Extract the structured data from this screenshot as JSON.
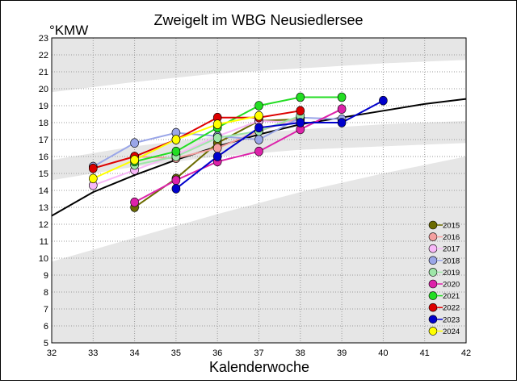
{
  "chart_data": {
    "type": "line",
    "title": "Zweigelt im WBG Neusiedlersee",
    "ylabel": "°KMW",
    "xlabel": "Kalenderwoche",
    "xlim": [
      32,
      42
    ],
    "ylim": [
      5,
      23
    ],
    "x_ticks": [
      32,
      33,
      34,
      35,
      36,
      37,
      38,
      39,
      40,
      41,
      42
    ],
    "y_ticks": [
      5,
      6,
      7,
      8,
      9,
      10,
      11,
      12,
      13,
      14,
      15,
      16,
      17,
      18,
      19,
      20,
      21,
      22,
      23
    ],
    "grid": true,
    "legend_position": "bottom-right",
    "bands": [
      {
        "color": "#e6e6e6",
        "upper": [
          [
            32,
            23
          ],
          [
            42,
            23
          ]
        ],
        "lower": [
          [
            32,
            19.8
          ],
          [
            34,
            20.4
          ],
          [
            36,
            20.9
          ],
          [
            38,
            21.2
          ],
          [
            40,
            21.5
          ],
          [
            42,
            21.7
          ]
        ]
      },
      {
        "color": "#e6e6e6",
        "upper": [
          [
            32,
            15.8
          ],
          [
            34,
            16.6
          ],
          [
            36,
            17.2
          ],
          [
            38,
            17.6
          ],
          [
            40,
            17.9
          ],
          [
            42,
            18.1
          ]
        ],
        "lower": [
          [
            32,
            14.6
          ],
          [
            34,
            15.4
          ],
          [
            36,
            16.0
          ],
          [
            38,
            16.4
          ],
          [
            40,
            16.6
          ],
          [
            42,
            16.8
          ]
        ]
      },
      {
        "color": "#e6e6e6",
        "upper": [
          [
            32,
            9.8
          ],
          [
            34,
            11.2
          ],
          [
            36,
            12.6
          ],
          [
            38,
            13.9
          ],
          [
            40,
            15.0
          ],
          [
            42,
            16.0
          ]
        ],
        "lower": [
          [
            32,
            5
          ],
          [
            42,
            5
          ]
        ]
      }
    ],
    "trend": {
      "color": "#000000",
      "points": [
        [
          32,
          12.5
        ],
        [
          33,
          13.9
        ],
        [
          34,
          14.9
        ],
        [
          35,
          15.8
        ],
        [
          36,
          16.6
        ],
        [
          37,
          17.3
        ],
        [
          38,
          17.9
        ],
        [
          39,
          18.3
        ],
        [
          40,
          18.7
        ],
        [
          41,
          19.1
        ],
        [
          42,
          19.4
        ]
      ]
    },
    "series": [
      {
        "name": "2015",
        "color": "#6b6b00",
        "points": [
          [
            34,
            13.0
          ],
          [
            35,
            14.7
          ],
          [
            36,
            16.8
          ],
          [
            37,
            18.1
          ],
          [
            38,
            18.2
          ]
        ]
      },
      {
        "name": "2016",
        "color": "#f4a0a0",
        "points": [
          [
            34,
            16.0
          ],
          [
            35,
            15.9
          ],
          [
            36,
            16.5
          ],
          [
            37,
            17.5
          ],
          [
            38,
            18.3
          ]
        ]
      },
      {
        "name": "2017",
        "color": "#f8b8f8",
        "points": [
          [
            33,
            14.3
          ],
          [
            34,
            15.2
          ],
          [
            35,
            16.1
          ],
          [
            36,
            17.2
          ],
          [
            37,
            18.1
          ],
          [
            38,
            18.0
          ]
        ]
      },
      {
        "name": "2018",
        "color": "#9aa6e8",
        "points": [
          [
            33,
            15.4
          ],
          [
            34,
            16.8
          ],
          [
            35,
            17.4
          ],
          [
            36,
            17.2
          ],
          [
            37,
            17.0
          ],
          [
            38,
            18.3
          ],
          [
            39,
            18.2
          ]
        ]
      },
      {
        "name": "2019",
        "color": "#9ee6a8",
        "points": [
          [
            34,
            15.5
          ],
          [
            35,
            16.0
          ],
          [
            36,
            17.1
          ],
          [
            37,
            17.5
          ],
          [
            38,
            18.4
          ]
        ]
      },
      {
        "name": "2020",
        "color": "#dd22aa",
        "points": [
          [
            34,
            13.3
          ],
          [
            35,
            14.6
          ],
          [
            36,
            15.7
          ],
          [
            37,
            16.3
          ],
          [
            38,
            17.6
          ],
          [
            39,
            18.8
          ]
        ]
      },
      {
        "name": "2021",
        "color": "#22dd22",
        "points": [
          [
            34,
            15.7
          ],
          [
            35,
            16.3
          ],
          [
            36,
            17.7
          ],
          [
            37,
            19.0
          ],
          [
            38,
            19.5
          ],
          [
            39,
            19.5
          ]
        ]
      },
      {
        "name": "2022",
        "color": "#dd0000",
        "points": [
          [
            33,
            15.3
          ],
          [
            34,
            16.0
          ],
          [
            35,
            17.0
          ],
          [
            36,
            18.3
          ],
          [
            37,
            18.3
          ],
          [
            38,
            18.7
          ]
        ]
      },
      {
        "name": "2023",
        "color": "#0000cc",
        "points": [
          [
            35,
            14.1
          ],
          [
            36,
            16.0
          ],
          [
            37,
            17.7
          ],
          [
            38,
            18.0
          ],
          [
            39,
            18.0
          ],
          [
            40,
            19.3
          ]
        ]
      },
      {
        "name": "2024",
        "color": "#ffff00",
        "points": [
          [
            33,
            14.7
          ],
          [
            34,
            15.8
          ],
          [
            35,
            17.0
          ],
          [
            36,
            17.9
          ],
          [
            37,
            18.4
          ]
        ]
      }
    ]
  }
}
